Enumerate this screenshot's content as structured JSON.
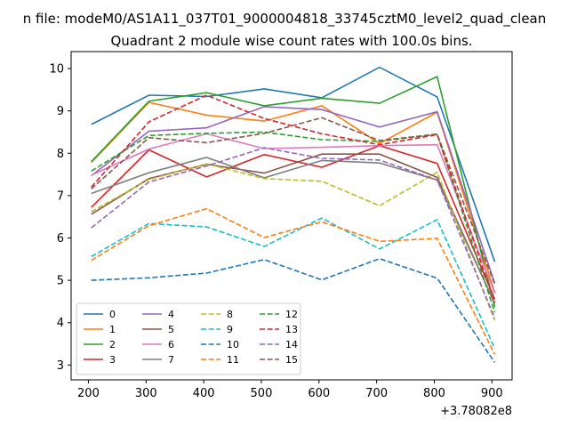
{
  "figure": {
    "suptitle": "n file: modeM0/AS1A11_037T01_9000004818_33745cztM0_level2_quad_clean"
  },
  "chart_data": {
    "type": "line",
    "title": "Quadrant 2 module wise count rates with 100.0s bins.",
    "xlabel": "",
    "ylabel": "",
    "x_offset_label": "+3.78082e8",
    "x": [
      205,
      305,
      405,
      505,
      605,
      705,
      805,
      905
    ],
    "xlim": [
      170,
      935
    ],
    "ylim": [
      2.65,
      10.4
    ],
    "x_ticks": [
      200,
      300,
      400,
      500,
      600,
      700,
      800,
      900
    ],
    "y_ticks": [
      3,
      4,
      5,
      6,
      7,
      8,
      9,
      10
    ],
    "grid": false,
    "legend": {
      "placement": "lower-left",
      "columns": 4
    },
    "series": [
      {
        "name": "0",
        "color": "#1f77b4",
        "dash": "solid",
        "values": [
          8.68,
          9.37,
          9.34,
          9.52,
          9.31,
          10.03,
          9.33,
          5.44
        ]
      },
      {
        "name": "1",
        "color": "#ff7f0e",
        "dash": "solid",
        "values": [
          7.78,
          9.2,
          8.9,
          8.76,
          9.12,
          8.23,
          8.97,
          4.71
        ]
      },
      {
        "name": "2",
        "color": "#2ca02c",
        "dash": "solid",
        "values": [
          7.8,
          9.23,
          9.43,
          9.12,
          9.3,
          9.18,
          9.81,
          4.37
        ]
      },
      {
        "name": "3",
        "color": "#d62728",
        "dash": "solid",
        "values": [
          6.72,
          8.08,
          7.44,
          7.97,
          7.67,
          8.18,
          7.76,
          4.55
        ]
      },
      {
        "name": "4",
        "color": "#9467bd",
        "dash": "solid",
        "values": [
          7.47,
          8.52,
          8.6,
          9.1,
          9.03,
          8.62,
          8.98,
          4.93
        ]
      },
      {
        "name": "5",
        "color": "#8c564b",
        "dash": "solid",
        "values": [
          6.56,
          7.4,
          7.74,
          7.53,
          7.98,
          7.98,
          7.43,
          4.45
        ]
      },
      {
        "name": "6",
        "color": "#e377c2",
        "dash": "solid",
        "values": [
          7.48,
          8.1,
          8.46,
          8.11,
          8.14,
          8.18,
          8.2,
          4.69
        ]
      },
      {
        "name": "7",
        "color": "#7f7f7f",
        "dash": "solid",
        "values": [
          7.05,
          7.54,
          7.9,
          7.42,
          7.83,
          7.77,
          7.37,
          4.46
        ]
      },
      {
        "name": "8",
        "color": "#bcbd22",
        "dash": "dashed",
        "values": [
          6.62,
          7.38,
          7.75,
          7.4,
          7.34,
          6.76,
          7.55,
          4.05
        ]
      },
      {
        "name": "9",
        "color": "#17becf",
        "dash": "dashed",
        "values": [
          5.56,
          6.34,
          6.26,
          5.8,
          6.47,
          5.74,
          6.43,
          3.39
        ]
      },
      {
        "name": "10",
        "color": "#1f77b4",
        "dash": "dashed",
        "values": [
          5.0,
          5.06,
          5.17,
          5.49,
          5.01,
          5.51,
          5.05,
          3.06
        ]
      },
      {
        "name": "11",
        "color": "#ff7f0e",
        "dash": "dashed",
        "values": [
          5.47,
          6.29,
          6.69,
          6.01,
          6.38,
          5.92,
          5.99,
          3.25
        ]
      },
      {
        "name": "12",
        "color": "#2ca02c",
        "dash": "dashed",
        "values": [
          7.58,
          8.42,
          8.47,
          8.5,
          8.32,
          8.28,
          8.45,
          4.24
        ]
      },
      {
        "name": "13",
        "color": "#d62728",
        "dash": "dashed",
        "values": [
          7.2,
          8.74,
          9.37,
          8.82,
          8.46,
          8.2,
          8.44,
          4.47
        ]
      },
      {
        "name": "14",
        "color": "#9467bd",
        "dash": "dashed",
        "values": [
          6.24,
          7.32,
          7.7,
          8.13,
          7.88,
          7.84,
          7.37,
          4.11
        ]
      },
      {
        "name": "15",
        "color": "#8c564b",
        "dash": "dashed",
        "values": [
          7.16,
          8.37,
          8.25,
          8.47,
          8.84,
          8.3,
          8.45,
          4.91
        ]
      }
    ]
  }
}
